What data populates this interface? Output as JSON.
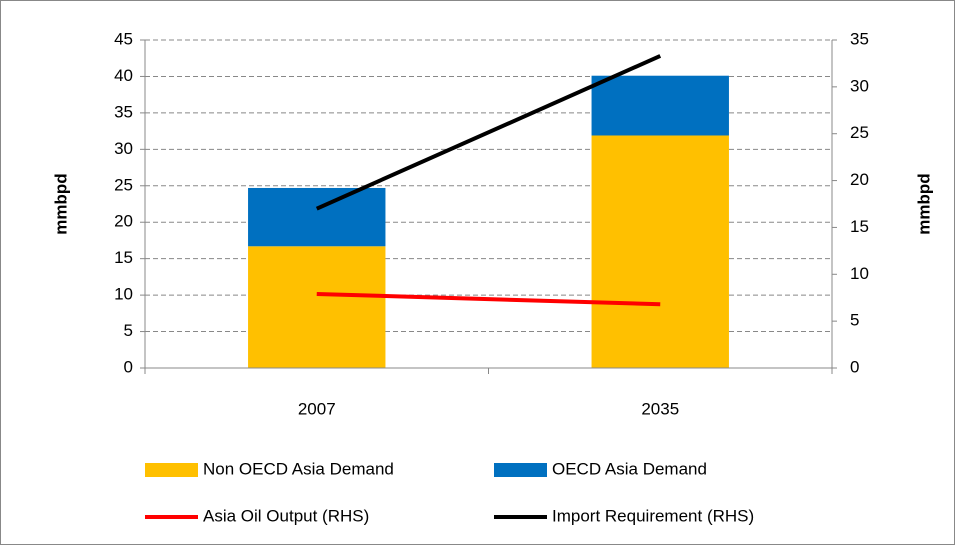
{
  "chart_data": {
    "type": "bar",
    "stacked": true,
    "categories": [
      "2007",
      "2035"
    ],
    "ylabel": "mmbpd",
    "y2label": "mmbpd",
    "ylim": [
      0,
      45
    ],
    "yticks": [
      0,
      5,
      10,
      15,
      20,
      25,
      30,
      35,
      40,
      45
    ],
    "y2lim": [
      0,
      35
    ],
    "y2ticks": [
      0,
      5,
      10,
      15,
      20,
      25,
      30,
      35
    ],
    "grid": true,
    "series": [
      {
        "name": "Non OECD Asia Demand",
        "type": "bar",
        "color": "#ffc000",
        "values": [
          16.7,
          31.9
        ]
      },
      {
        "name": "OECD Asia Demand",
        "type": "bar",
        "color": "#0070c0",
        "values": [
          8.0,
          8.2
        ]
      },
      {
        "name": "Asia Oil Output (RHS)",
        "type": "line",
        "axis": "y2",
        "color": "#ff0000",
        "values": [
          7.9,
          6.8
        ]
      },
      {
        "name": "Import Requirement (RHS)",
        "type": "line",
        "axis": "y2",
        "color": "#000000",
        "values": [
          17.0,
          33.3
        ]
      }
    ]
  }
}
